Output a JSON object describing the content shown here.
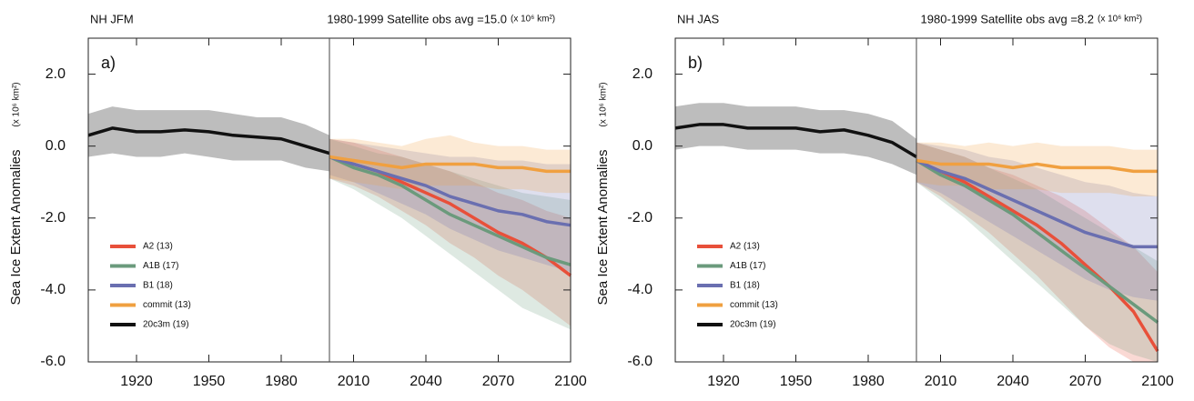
{
  "chart_data": [
    {
      "type": "line",
      "title": "NH JFM",
      "subtitle": "1980-1999 Satellite obs avg =15.0",
      "unit_note": "(x 10⁶ km²)",
      "panel_label": "a)",
      "y_label": "Sea Ice Extent Anomalies",
      "y_unit": "(x 10⁶ km²)",
      "xlim": [
        1900,
        2100
      ],
      "ylim": [
        -6,
        3
      ],
      "xticks": [
        1920,
        1950,
        1980,
        2010,
        2040,
        2070,
        2100
      ],
      "yticks": [
        {
          "value": -6,
          "label": "-6.0"
        },
        {
          "value": -4,
          "label": "-4.0"
        },
        {
          "value": -2,
          "label": "-2.0"
        },
        {
          "value": 0,
          "label": "0.0"
        },
        {
          "value": 2,
          "label": "2.0"
        }
      ],
      "vline": 2000,
      "series": [
        {
          "name": "A2 (13)",
          "color": "#e8503a",
          "x": [
            2000,
            2010,
            2020,
            2030,
            2040,
            2050,
            2060,
            2070,
            2080,
            2090,
            2100
          ],
          "values": [
            -0.3,
            -0.5,
            -0.7,
            -1.0,
            -1.3,
            -1.6,
            -2.0,
            -2.4,
            -2.7,
            -3.1,
            -3.6
          ],
          "lower": [
            -0.9,
            -1.1,
            -1.4,
            -1.8,
            -2.2,
            -2.7,
            -3.1,
            -3.6,
            -4.0,
            -4.5,
            -5.0
          ],
          "upper": [
            0.2,
            0.1,
            -0.1,
            -0.3,
            -0.5,
            -0.7,
            -1.0,
            -1.3,
            -1.5,
            -1.8,
            -2.0
          ]
        },
        {
          "name": "A1B (17)",
          "color": "#6b9a7c",
          "x": [
            2000,
            2010,
            2020,
            2030,
            2040,
            2050,
            2060,
            2070,
            2080,
            2090,
            2100
          ],
          "values": [
            -0.3,
            -0.6,
            -0.8,
            -1.1,
            -1.5,
            -1.9,
            -2.2,
            -2.5,
            -2.8,
            -3.1,
            -3.3
          ],
          "lower": [
            -0.9,
            -1.2,
            -1.6,
            -2.0,
            -2.5,
            -3.0,
            -3.5,
            -4.0,
            -4.5,
            -4.8,
            -5.1
          ],
          "upper": [
            0.2,
            0.0,
            -0.2,
            -0.3,
            -0.5,
            -0.7,
            -0.9,
            -1.1,
            -1.3,
            -1.4,
            -1.5
          ]
        },
        {
          "name": "B1 (18)",
          "color": "#6a6fb0",
          "x": [
            2000,
            2010,
            2020,
            2030,
            2040,
            2050,
            2060,
            2070,
            2080,
            2090,
            2100
          ],
          "values": [
            -0.3,
            -0.5,
            -0.7,
            -0.9,
            -1.1,
            -1.4,
            -1.6,
            -1.8,
            -1.9,
            -2.1,
            -2.2
          ],
          "lower": [
            -0.8,
            -1.0,
            -1.3,
            -1.6,
            -1.9,
            -2.3,
            -2.6,
            -2.9,
            -3.1,
            -3.3,
            -3.5
          ],
          "upper": [
            0.2,
            0.1,
            0.0,
            -0.1,
            -0.2,
            -0.3,
            -0.3,
            -0.4,
            -0.4,
            -0.5,
            -0.5
          ]
        },
        {
          "name": "commit (13)",
          "color": "#f0a040",
          "x": [
            2000,
            2010,
            2020,
            2030,
            2040,
            2050,
            2060,
            2070,
            2080,
            2090,
            2100
          ],
          "values": [
            -0.3,
            -0.4,
            -0.5,
            -0.6,
            -0.5,
            -0.5,
            -0.5,
            -0.6,
            -0.6,
            -0.7,
            -0.7
          ],
          "lower": [
            -0.9,
            -1.0,
            -1.1,
            -1.2,
            -1.1,
            -1.1,
            -1.1,
            -1.2,
            -1.2,
            -1.3,
            -1.3
          ],
          "upper": [
            0.2,
            0.2,
            0.1,
            0.0,
            0.2,
            0.3,
            0.1,
            0.0,
            0.0,
            -0.1,
            -0.1
          ]
        },
        {
          "name": "20c3m (19)",
          "color": "#111111",
          "x": [
            1900,
            1910,
            1920,
            1930,
            1940,
            1950,
            1960,
            1970,
            1980,
            1990,
            2000
          ],
          "values": [
            0.3,
            0.5,
            0.4,
            0.4,
            0.45,
            0.4,
            0.3,
            0.25,
            0.2,
            0.0,
            -0.2
          ],
          "lower": [
            -0.3,
            -0.2,
            -0.3,
            -0.3,
            -0.2,
            -0.3,
            -0.4,
            -0.4,
            -0.4,
            -0.6,
            -0.7
          ],
          "upper": [
            0.9,
            1.1,
            1.0,
            1.0,
            1.0,
            1.0,
            0.9,
            0.8,
            0.8,
            0.6,
            0.3
          ]
        }
      ]
    },
    {
      "type": "line",
      "title": "NH JAS",
      "subtitle": "1980-1999 Satellite obs avg =8.2",
      "unit_note": "(x 10⁶ km²)",
      "panel_label": "b)",
      "y_label": "Sea Ice Extent Anomalies",
      "y_unit": "(x 10⁶ km²)",
      "xlim": [
        1900,
        2100
      ],
      "ylim": [
        -6,
        3
      ],
      "xticks": [
        1920,
        1950,
        1980,
        2010,
        2040,
        2070,
        2100
      ],
      "yticks": [
        {
          "value": -6,
          "label": "-6.0"
        },
        {
          "value": -4,
          "label": "-4.0"
        },
        {
          "value": -2,
          "label": "-2.0"
        },
        {
          "value": 0,
          "label": "0.0"
        },
        {
          "value": 2,
          "label": "2.0"
        }
      ],
      "vline": 2000,
      "series": [
        {
          "name": "A2 (13)",
          "color": "#e8503a",
          "x": [
            2000,
            2010,
            2020,
            2030,
            2040,
            2050,
            2060,
            2070,
            2080,
            2090,
            2100
          ],
          "values": [
            -0.4,
            -0.7,
            -1.0,
            -1.4,
            -1.8,
            -2.2,
            -2.7,
            -3.3,
            -3.9,
            -4.6,
            -5.7
          ],
          "lower": [
            -1.0,
            -1.4,
            -1.9,
            -2.4,
            -3.0,
            -3.6,
            -4.3,
            -5.0,
            -5.6,
            -6.0,
            -6.0
          ],
          "upper": [
            0.1,
            -0.1,
            -0.3,
            -0.6,
            -0.8,
            -1.1,
            -1.4,
            -1.8,
            -2.3,
            -2.8,
            -3.5
          ]
        },
        {
          "name": "A1B (17)",
          "color": "#6b9a7c",
          "x": [
            2000,
            2010,
            2020,
            2030,
            2040,
            2050,
            2060,
            2070,
            2080,
            2090,
            2100
          ],
          "values": [
            -0.4,
            -0.8,
            -1.1,
            -1.5,
            -1.9,
            -2.4,
            -2.9,
            -3.4,
            -3.9,
            -4.4,
            -4.9
          ],
          "lower": [
            -1.0,
            -1.5,
            -2.0,
            -2.6,
            -3.2,
            -3.8,
            -4.4,
            -5.0,
            -5.5,
            -5.8,
            -6.0
          ],
          "upper": [
            0.1,
            -0.1,
            -0.3,
            -0.6,
            -0.9,
            -1.2,
            -1.6,
            -2.0,
            -2.4,
            -2.8,
            -3.2
          ]
        },
        {
          "name": "B1 (18)",
          "color": "#6a6fb0",
          "x": [
            2000,
            2010,
            2020,
            2030,
            2040,
            2050,
            2060,
            2070,
            2080,
            2090,
            2100
          ],
          "values": [
            -0.4,
            -0.7,
            -0.9,
            -1.2,
            -1.5,
            -1.8,
            -2.1,
            -2.4,
            -2.6,
            -2.8,
            -2.8
          ],
          "lower": [
            -1.0,
            -1.3,
            -1.7,
            -2.1,
            -2.5,
            -2.9,
            -3.3,
            -3.7,
            -4.0,
            -4.2,
            -4.3
          ],
          "upper": [
            0.1,
            0.0,
            -0.1,
            -0.3,
            -0.4,
            -0.6,
            -0.8,
            -1.0,
            -1.1,
            -1.3,
            -1.4
          ]
        },
        {
          "name": "commit (13)",
          "color": "#f0a040",
          "x": [
            2000,
            2010,
            2020,
            2030,
            2040,
            2050,
            2060,
            2070,
            2080,
            2090,
            2100
          ],
          "values": [
            -0.4,
            -0.5,
            -0.5,
            -0.5,
            -0.6,
            -0.5,
            -0.6,
            -0.6,
            -0.6,
            -0.7,
            -0.7
          ],
          "lower": [
            -1.0,
            -1.1,
            -1.1,
            -1.2,
            -1.2,
            -1.2,
            -1.3,
            -1.3,
            -1.3,
            -1.4,
            -1.4
          ],
          "upper": [
            0.1,
            0.1,
            0.0,
            0.1,
            0.0,
            0.1,
            0.0,
            0.0,
            0.0,
            -0.1,
            -0.1
          ]
        },
        {
          "name": "20c3m (19)",
          "color": "#111111",
          "x": [
            1900,
            1910,
            1920,
            1930,
            1940,
            1950,
            1960,
            1970,
            1980,
            1990,
            2000
          ],
          "values": [
            0.5,
            0.6,
            0.6,
            0.5,
            0.5,
            0.5,
            0.4,
            0.45,
            0.3,
            0.1,
            -0.3
          ],
          "lower": [
            -0.1,
            0.0,
            0.0,
            -0.1,
            -0.1,
            -0.1,
            -0.2,
            -0.2,
            -0.3,
            -0.5,
            -0.8
          ],
          "upper": [
            1.1,
            1.2,
            1.2,
            1.1,
            1.1,
            1.1,
            1.0,
            1.0,
            0.9,
            0.7,
            0.2
          ]
        }
      ]
    }
  ]
}
